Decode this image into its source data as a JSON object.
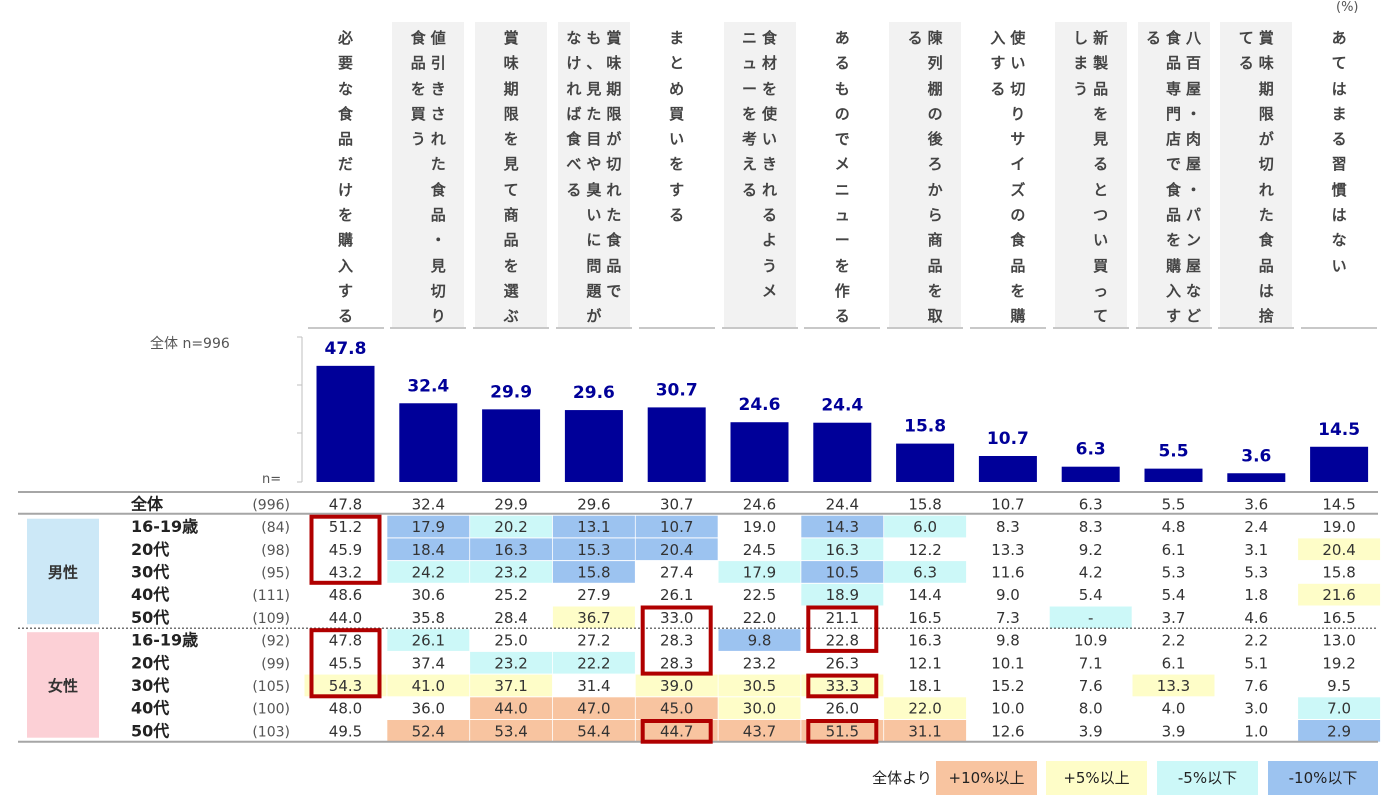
{
  "unit_label": "(%)",
  "overall_label": "全体 n=996",
  "n_label": "n=",
  "chart_data": {
    "type": "bar",
    "categories": [
      "必要な食品だけを購入する",
      "値引きされた食品・見切り食品を買う",
      "賞味期限を見て商品を選ぶ",
      "賞味期限が切れた食品でも、見た目や臭いに問題がなければ食べる",
      "まとめ買いをする",
      "食材を使いきれるようメニューを考える",
      "あるものでメニューを作る",
      "陳列棚の後ろから商品を取る",
      "使い切りサイズの食品を購入する",
      "新製品を見るとつい買ってしまう",
      "八百屋・肉屋・パン屋など食品専門店で食品を購入する",
      "賞味期限が切れた食品は捨てる",
      "あてはまる習慣はない"
    ],
    "values": [
      47.8,
      32.4,
      29.9,
      29.6,
      30.7,
      24.6,
      24.4,
      15.8,
      10.7,
      6.3,
      5.5,
      3.6,
      14.5
    ],
    "bar_color": "#000099",
    "label_color": "#000099"
  },
  "header_columns": [
    [
      "必要な食品だけを購入する"
    ],
    [
      "値引きされた食品・見切り",
      "食品を買う"
    ],
    [
      "賞味期限を見て商品を選ぶ"
    ],
    [
      "賞味期限が切れた食品で",
      "も、見た目や臭いに問題が",
      "なければ食べる"
    ],
    [
      "まとめ買いをする"
    ],
    [
      "食材を使いきれるようメ",
      "ニューを考える"
    ],
    [
      "あるものでメニューを作る"
    ],
    [
      "陳列棚の後ろから商品を取",
      "る"
    ],
    [
      "使い切りサイズの食品を購",
      "入する"
    ],
    [
      "新製品を見るとつい買って",
      "しまう"
    ],
    [
      "八百屋・肉屋・パン屋など",
      "食品専門店で食品を購入す",
      "る"
    ],
    [
      "賞味期限が切れた食品は捨",
      "てる"
    ],
    [
      "あてはまる習慣はない"
    ]
  ],
  "header_shaded": [
    false,
    true,
    true,
    true,
    false,
    true,
    false,
    true,
    false,
    true,
    true,
    true,
    false
  ],
  "table": {
    "rows": [
      {
        "group": "",
        "label": "全体",
        "n": "(996)",
        "values": [
          "47.8",
          "32.4",
          "29.9",
          "29.6",
          "30.7",
          "24.6",
          "24.4",
          "15.8",
          "10.7",
          "6.3",
          "5.5",
          "3.6",
          "14.5"
        ],
        "shade": [
          "",
          "",
          "",
          "",
          "",
          "",
          "",
          "",
          "",
          "",
          "",
          "",
          ""
        ],
        "boxed": [
          0,
          0,
          0,
          0,
          0,
          0,
          0,
          0,
          0,
          0,
          0,
          0,
          0
        ]
      },
      {
        "group": "男性",
        "label": "16-19歳",
        "n": "(84)",
        "values": [
          "51.2",
          "17.9",
          "20.2",
          "13.1",
          "10.7",
          "19.0",
          "14.3",
          "6.0",
          "8.3",
          "8.3",
          "4.8",
          "2.4",
          "19.0"
        ],
        "shade": [
          "",
          "dn10",
          "dn5",
          "dn10",
          "dn10",
          "",
          "dn10",
          "dn5",
          "",
          "",
          "",
          "",
          ""
        ],
        "boxed": [
          1,
          0,
          0,
          0,
          0,
          0,
          0,
          0,
          0,
          0,
          0,
          0,
          0
        ]
      },
      {
        "group": "男性",
        "label": "20代",
        "n": "(98)",
        "values": [
          "45.9",
          "18.4",
          "16.3",
          "15.3",
          "20.4",
          "24.5",
          "16.3",
          "12.2",
          "13.3",
          "9.2",
          "6.1",
          "3.1",
          "20.4"
        ],
        "shade": [
          "",
          "dn10",
          "dn10",
          "dn10",
          "dn10",
          "",
          "dn5",
          "",
          "",
          "",
          "",
          "",
          "up5"
        ],
        "boxed": [
          1,
          0,
          0,
          0,
          0,
          0,
          0,
          0,
          0,
          0,
          0,
          0,
          0
        ]
      },
      {
        "group": "男性",
        "label": "30代",
        "n": "(95)",
        "values": [
          "43.2",
          "24.2",
          "23.2",
          "15.8",
          "27.4",
          "17.9",
          "10.5",
          "6.3",
          "11.6",
          "4.2",
          "5.3",
          "5.3",
          "15.8"
        ],
        "shade": [
          "",
          "dn5",
          "dn5",
          "dn10",
          "",
          "dn5",
          "dn10",
          "dn5",
          "",
          "",
          "",
          "",
          ""
        ],
        "boxed": [
          1,
          0,
          0,
          0,
          0,
          0,
          0,
          0,
          0,
          0,
          0,
          0,
          0
        ]
      },
      {
        "group": "男性",
        "label": "40代",
        "n": "(111)",
        "values": [
          "48.6",
          "30.6",
          "25.2",
          "27.9",
          "26.1",
          "22.5",
          "18.9",
          "14.4",
          "9.0",
          "5.4",
          "5.4",
          "1.8",
          "21.6"
        ],
        "shade": [
          "",
          "",
          "",
          "",
          "",
          "",
          "dn5",
          "",
          "",
          "",
          "",
          "",
          "up5"
        ],
        "boxed": [
          0,
          0,
          0,
          0,
          0,
          0,
          0,
          0,
          0,
          0,
          0,
          0,
          0
        ]
      },
      {
        "group": "男性",
        "label": "50代",
        "n": "(109)",
        "values": [
          "44.0",
          "35.8",
          "28.4",
          "36.7",
          "33.0",
          "22.0",
          "21.1",
          "16.5",
          "7.3",
          "-",
          "3.7",
          "4.6",
          "16.5"
        ],
        "shade": [
          "",
          "",
          "",
          "up5",
          "",
          "",
          "",
          "",
          "",
          "dn5",
          "",
          "",
          ""
        ],
        "boxed": [
          0,
          0,
          0,
          0,
          1,
          0,
          1,
          0,
          0,
          0,
          0,
          0,
          0
        ]
      },
      {
        "group": "女性",
        "label": "16-19歳",
        "n": "(92)",
        "values": [
          "47.8",
          "26.1",
          "25.0",
          "27.2",
          "28.3",
          "9.8",
          "22.8",
          "16.3",
          "9.8",
          "10.9",
          "2.2",
          "2.2",
          "13.0"
        ],
        "shade": [
          "",
          "dn5",
          "",
          "",
          "",
          "dn10",
          "",
          "",
          "",
          "",
          "",
          "",
          ""
        ],
        "boxed": [
          1,
          0,
          0,
          0,
          1,
          0,
          1,
          0,
          0,
          0,
          0,
          0,
          0
        ]
      },
      {
        "group": "女性",
        "label": "20代",
        "n": "(99)",
        "values": [
          "45.5",
          "37.4",
          "23.2",
          "22.2",
          "28.3",
          "23.2",
          "26.3",
          "12.1",
          "10.1",
          "7.1",
          "6.1",
          "5.1",
          "19.2"
        ],
        "shade": [
          "",
          "",
          "dn5",
          "dn5",
          "",
          "",
          "",
          "",
          "",
          "",
          "",
          "",
          ""
        ],
        "boxed": [
          1,
          0,
          0,
          0,
          1,
          0,
          0,
          0,
          0,
          0,
          0,
          0,
          0
        ]
      },
      {
        "group": "女性",
        "label": "30代",
        "n": "(105)",
        "values": [
          "54.3",
          "41.0",
          "37.1",
          "31.4",
          "39.0",
          "30.5",
          "33.3",
          "18.1",
          "15.2",
          "7.6",
          "13.3",
          "7.6",
          "9.5"
        ],
        "shade": [
          "up5",
          "up5",
          "up5",
          "",
          "up5",
          "up5",
          "up5",
          "",
          "",
          "",
          "up5",
          "",
          ""
        ],
        "boxed": [
          1,
          0,
          0,
          0,
          0,
          0,
          1,
          0,
          0,
          0,
          0,
          0,
          0
        ]
      },
      {
        "group": "女性",
        "label": "40代",
        "n": "(100)",
        "values": [
          "48.0",
          "36.0",
          "44.0",
          "47.0",
          "45.0",
          "30.0",
          "26.0",
          "22.0",
          "10.0",
          "8.0",
          "4.0",
          "3.0",
          "7.0"
        ],
        "shade": [
          "",
          "",
          "up10",
          "up10",
          "up10",
          "up5",
          "",
          "up5",
          "",
          "",
          "",
          "",
          "dn5"
        ],
        "boxed": [
          0,
          0,
          0,
          0,
          0,
          0,
          0,
          0,
          0,
          0,
          0,
          0,
          0
        ]
      },
      {
        "group": "女性",
        "label": "50代",
        "n": "(103)",
        "values": [
          "49.5",
          "52.4",
          "53.4",
          "54.4",
          "44.7",
          "43.7",
          "51.5",
          "31.1",
          "12.6",
          "3.9",
          "3.9",
          "1.0",
          "2.9"
        ],
        "shade": [
          "",
          "up10",
          "up10",
          "up10",
          "up10",
          "up10",
          "up10",
          "up10",
          "",
          "",
          "",
          "",
          "dn10"
        ],
        "boxed": [
          0,
          0,
          0,
          0,
          1,
          0,
          1,
          0,
          0,
          0,
          0,
          0,
          0
        ]
      }
    ],
    "groups": [
      {
        "name": "男性",
        "color": "#cce8f7"
      },
      {
        "name": "女性",
        "color": "#fcd0d6"
      }
    ]
  },
  "legend": {
    "prefix": "全体より",
    "items": [
      {
        "label": "+10%以上",
        "color": "#f8c4a0"
      },
      {
        "label": "+5%以上",
        "color": "#fefdc8"
      },
      {
        "label": "-5%以下",
        "color": "#ccf8f8"
      },
      {
        "label": "-10%以下",
        "color": "#9cc3f0"
      }
    ]
  },
  "shade_colors": {
    "up10": "#f8c4a0",
    "up5": "#fefdc8",
    "dn5": "#ccf8f8",
    "dn10": "#9cc3f0"
  },
  "box_color": "#b00000"
}
